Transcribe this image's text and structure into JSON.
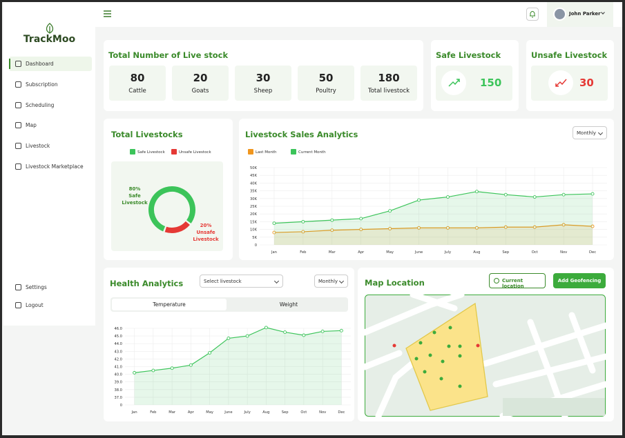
{
  "sidebar": {
    "brand": "TrackMoo",
    "menu": [
      "Dashboard",
      "Subscription",
      "Scheduling",
      "Map",
      "Livestock",
      "Livestock Marketplace"
    ],
    "footer_menu": [
      "Settings",
      "Logout"
    ]
  },
  "header": {
    "user": "John Parker"
  },
  "livestock_total": {
    "title": "Total Number of Live stock",
    "items": [
      {
        "value": 80,
        "label": "Cattle"
      },
      {
        "value": 20,
        "label": "Goats"
      },
      {
        "value": 30,
        "label": "Sheep"
      },
      {
        "value": 50,
        "label": "Poultry"
      },
      {
        "value": 180,
        "label": "Total livestock"
      }
    ]
  },
  "safe": {
    "title": "Safe Livestock",
    "value": 150
  },
  "unsafe": {
    "title": "Unsafe Livestock",
    "value": 30
  },
  "sales_controls": {
    "period": "Monthly"
  },
  "health_controls": {
    "select": "Select livestock",
    "period": "Monthly",
    "tabs": [
      "Temperature",
      "Weight"
    ]
  },
  "map": {
    "title": "Map Location",
    "buttons": [
      "Current location",
      "Add Geofencing"
    ]
  },
  "chart_data": [
    {
      "type": "pie",
      "title": "Total Livestocks",
      "donut": true,
      "categories": [
        "Safe Livestock",
        "Unsafe Livestock"
      ],
      "values": [
        80,
        20
      ],
      "value_labels": [
        "80%",
        "20%"
      ],
      "colors": [
        "#3cc45a",
        "#e53935"
      ],
      "legend": "top"
    },
    {
      "type": "line",
      "title": "Livestock Sales Analytics",
      "area": true,
      "grid": true,
      "legend": "top-left",
      "categories": [
        "Jan",
        "Feb",
        "Mar",
        "Apr",
        "May",
        "June",
        "July",
        "Aug",
        "Sep",
        "Oct",
        "Nov",
        "Dec"
      ],
      "series": [
        {
          "name": "Last Month",
          "color": "#f0961e",
          "values": [
            8000,
            8500,
            9500,
            10000,
            10500,
            11000,
            11000,
            11000,
            11500,
            11500,
            13000,
            12000
          ]
        },
        {
          "name": "Current Month",
          "color": "#3cc45a",
          "values": [
            14000,
            15000,
            16000,
            17000,
            22000,
            29000,
            31000,
            34500,
            32500,
            31000,
            32500,
            33000
          ]
        }
      ],
      "ylim": [
        0,
        50000
      ],
      "yticks": [
        0,
        {
          "value": 5000,
          "label": "5K"
        },
        {
          "value": 10000,
          "label": "10K"
        },
        {
          "value": 15000,
          "label": "15K"
        },
        {
          "value": 20000,
          "label": "20K"
        },
        {
          "value": 25000,
          "label": "25K"
        },
        {
          "value": 30000,
          "label": "30K"
        },
        {
          "value": 35000,
          "label": "35K"
        },
        {
          "value": 40000,
          "label": "40K"
        },
        {
          "value": 45000,
          "label": "45K"
        },
        {
          "value": 50000,
          "label": "50K"
        }
      ]
    },
    {
      "type": "line",
      "title": "Health Analytics",
      "area": true,
      "grid": true,
      "y_axis_break": true,
      "categories": [
        "Jan",
        "Feb",
        "Mar",
        "Apr",
        "May",
        "June",
        "July",
        "Aug",
        "Sep",
        "Oct",
        "Nov",
        "Dec"
      ],
      "series": [
        {
          "color": "#3cc45a",
          "values": [
            40.2,
            40.5,
            40.8,
            41.2,
            42.8,
            44.7,
            45.0,
            46.1,
            45.5,
            45.1,
            45.6,
            45.7
          ]
        }
      ],
      "ylim": [
        36,
        46
      ],
      "yticks": [
        0,
        {
          "value": 37,
          "label": "37.0"
        },
        {
          "value": 38,
          "label": "38.0"
        },
        {
          "value": 39,
          "label": "39.0"
        },
        {
          "value": 40,
          "label": "40.0"
        },
        {
          "value": 41,
          "label": "41.0"
        },
        {
          "value": 42,
          "label": "42.0"
        },
        {
          "value": 43,
          "label": "43.0"
        },
        {
          "value": 44,
          "label": "44.0"
        },
        {
          "value": 45,
          "label": "45.0"
        },
        {
          "value": 46,
          "label": "46.0"
        }
      ]
    }
  ]
}
